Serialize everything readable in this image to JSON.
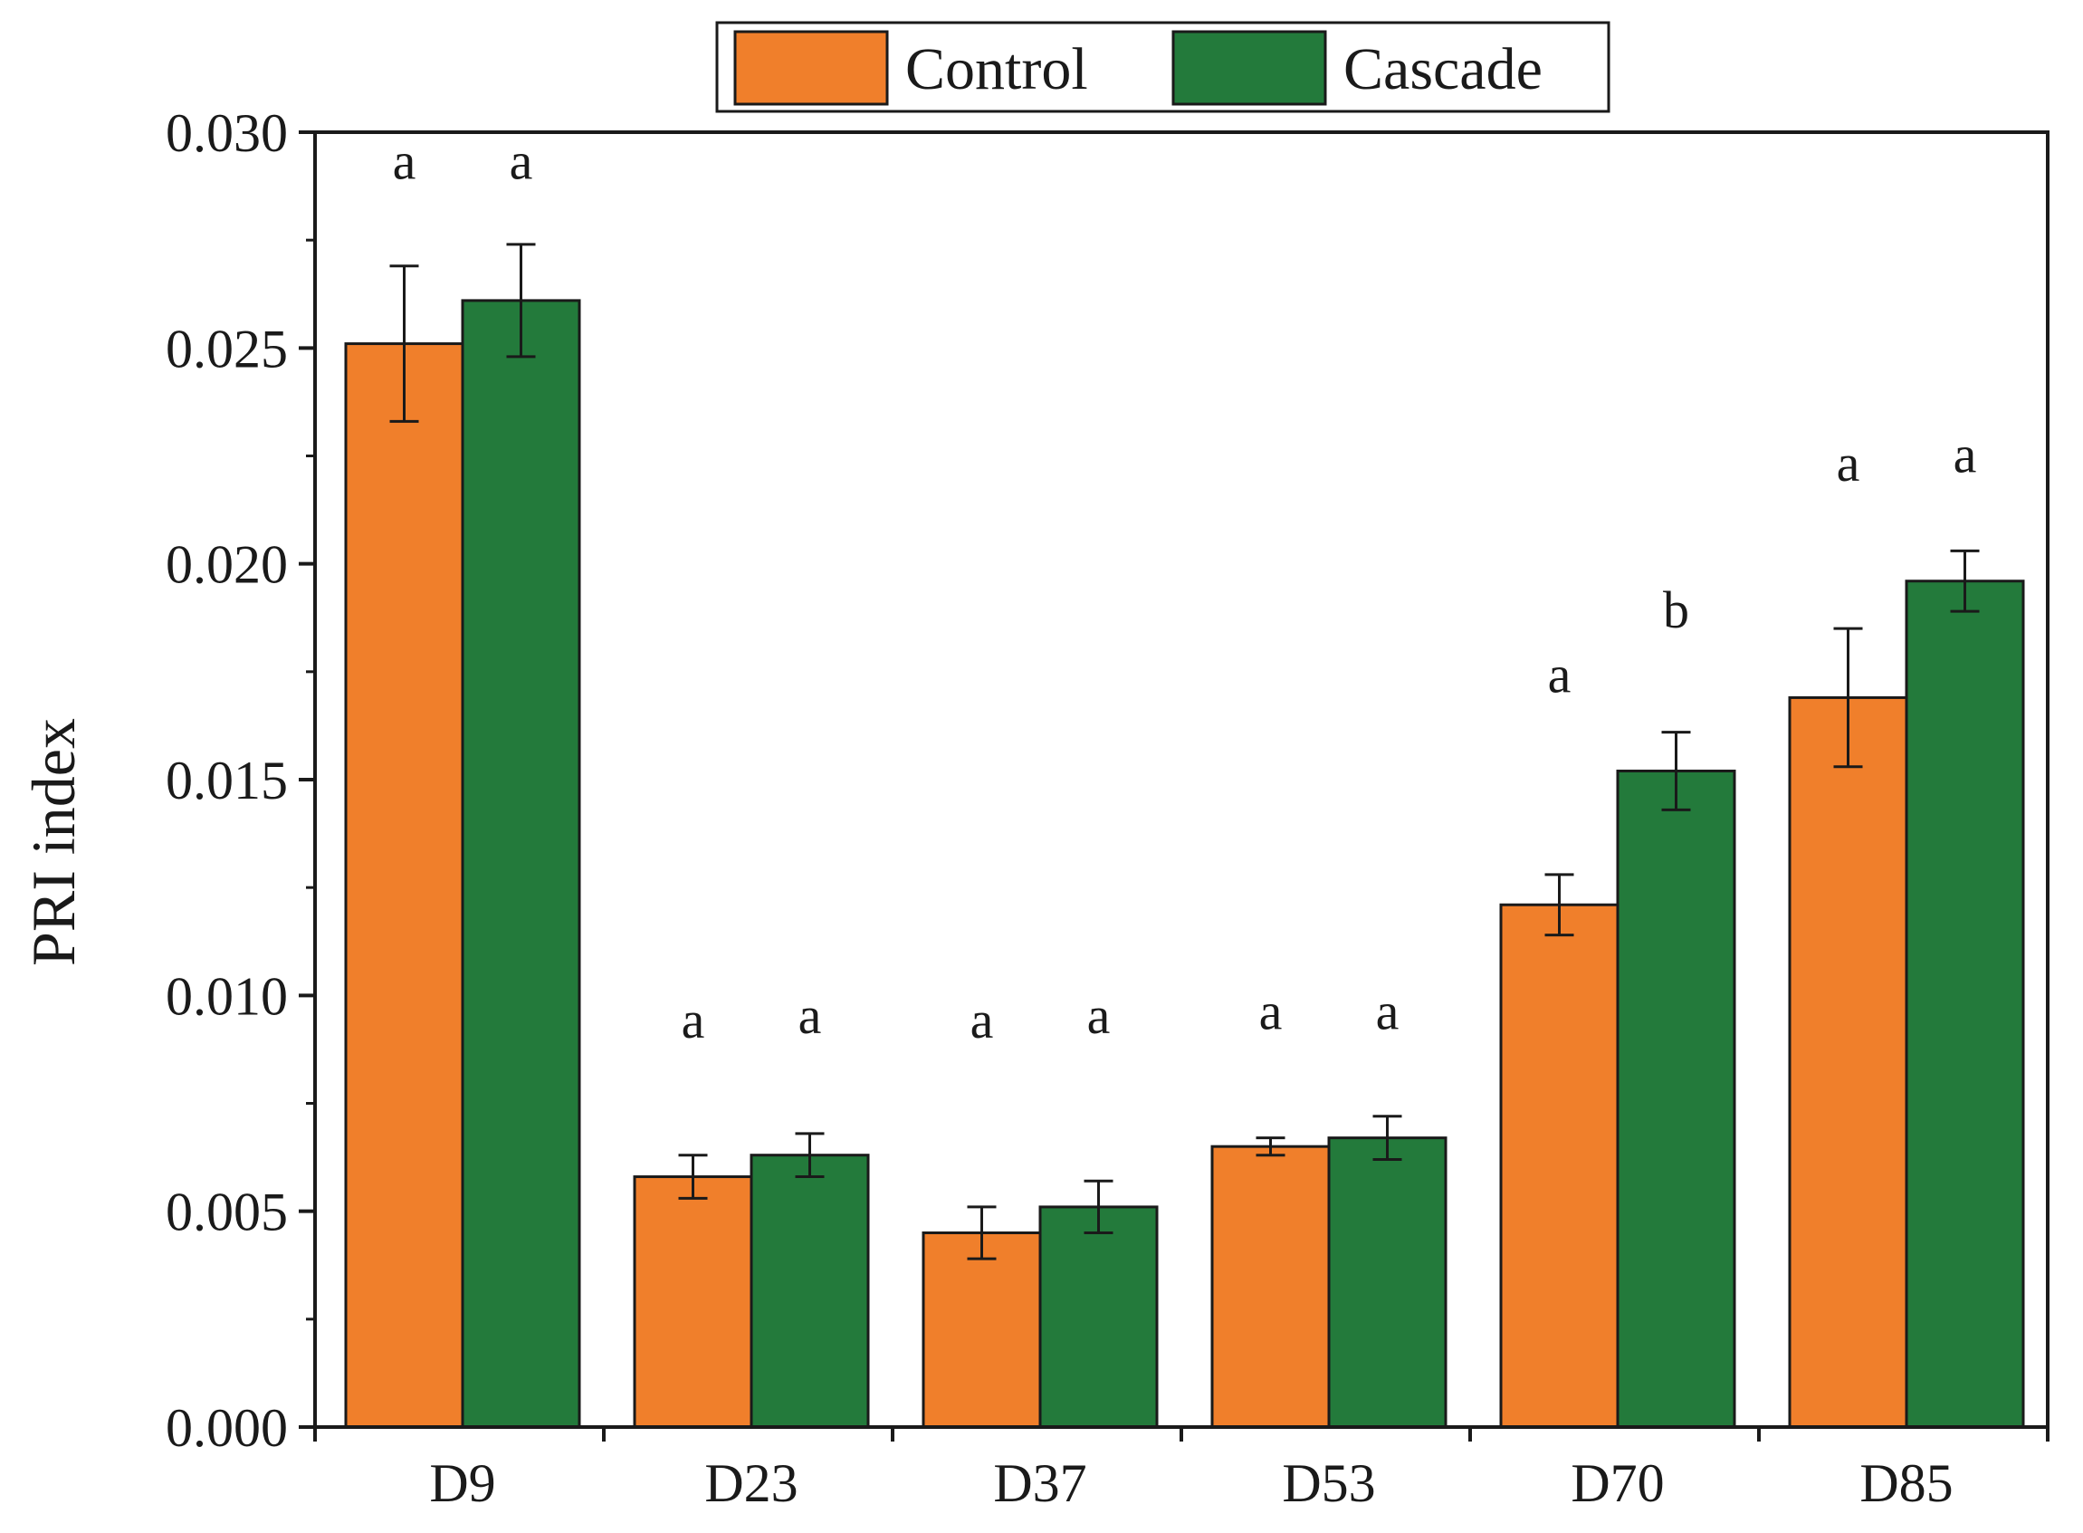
{
  "chart_data": {
    "type": "bar",
    "title": "",
    "xlabel": "",
    "ylabel": "PRI index",
    "ylim": [
      0,
      0.03
    ],
    "yticks": [
      "0.000",
      "0.005",
      "0.010",
      "0.015",
      "0.020",
      "0.025",
      "0.030"
    ],
    "categories": [
      "D9",
      "D23",
      "D37",
      "D53",
      "D70",
      "D85"
    ],
    "legend_position": "top-center",
    "series": [
      {
        "name": "Control",
        "color": "#f07f2b",
        "values": [
          0.0251,
          0.0058,
          0.0045,
          0.0065,
          0.0121,
          0.0169
        ],
        "errors": [
          0.0018,
          0.0005,
          0.0006,
          0.0002,
          0.0007,
          0.0016
        ],
        "significance": [
          "a",
          "a",
          "a",
          "a",
          "a",
          "a"
        ]
      },
      {
        "name": "Cascade",
        "color": "#237a3b",
        "values": [
          0.0261,
          0.0063,
          0.0051,
          0.0067,
          0.0152,
          0.0196
        ],
        "errors": [
          0.0013,
          0.0005,
          0.0006,
          0.0005,
          0.0009,
          0.0007
        ],
        "significance": [
          "a",
          "a",
          "a",
          "a",
          "b",
          "a"
        ]
      }
    ],
    "significance_y": [
      [
        0.0293,
        0.0293
      ],
      [
        0.0094,
        0.0095
      ],
      [
        0.0094,
        0.0095
      ],
      [
        0.0096,
        0.0096
      ],
      [
        0.0174,
        0.0189
      ],
      [
        0.0223,
        0.0225
      ]
    ]
  }
}
